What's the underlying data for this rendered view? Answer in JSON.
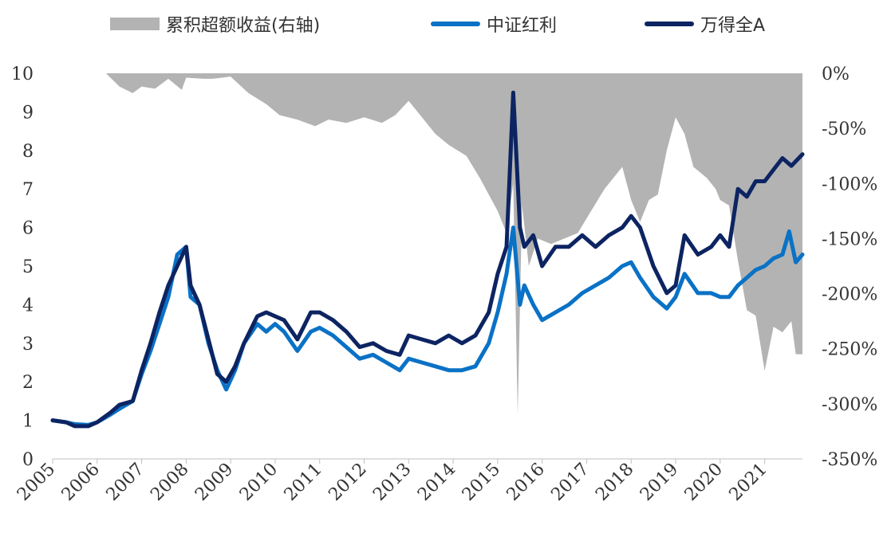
{
  "chart_data": {
    "type": "line",
    "title": "",
    "legend": [
      {
        "label": "累积超额收益(右轴)",
        "kind": "area",
        "color": "#b3b3b3"
      },
      {
        "label": "中证红利",
        "kind": "line",
        "color": "#0a72c6"
      },
      {
        "label": "万得全A",
        "kind": "line",
        "color": "#0d2462"
      }
    ],
    "legend_position": "top",
    "grid": false,
    "x_ticks": [
      "2005",
      "2006",
      "2007",
      "2008",
      "2009",
      "2010",
      "2011",
      "2012",
      "2013",
      "2014",
      "2015",
      "2016",
      "2017",
      "2018",
      "2019",
      "2020",
      "2021"
    ],
    "xlim": [
      2005,
      2021.85
    ],
    "y_left": {
      "ticks": [
        "0",
        "1",
        "2",
        "3",
        "4",
        "5",
        "6",
        "7",
        "8",
        "9",
        "10"
      ],
      "ylim": [
        0,
        10
      ]
    },
    "y_right": {
      "ticks": [
        "0%",
        "-50%",
        "-100%",
        "-150%",
        "-200%",
        "-250%",
        "-300%",
        "-350%"
      ],
      "ylim": [
        -350,
        0
      ]
    },
    "series": [
      {
        "name": "累积超额收益(右轴)",
        "axis": "right",
        "type": "area",
        "points": [
          [
            2005.0,
            0
          ],
          [
            2006.2,
            0
          ],
          [
            2006.5,
            -12
          ],
          [
            2006.8,
            -18
          ],
          [
            2007.0,
            -12
          ],
          [
            2007.3,
            -14
          ],
          [
            2007.6,
            -5
          ],
          [
            2007.9,
            -15
          ],
          [
            2008.0,
            -4
          ],
          [
            2008.4,
            -5
          ],
          [
            2008.6,
            -5
          ],
          [
            2008.8,
            -4
          ],
          [
            2009.0,
            -3
          ],
          [
            2009.4,
            -18
          ],
          [
            2009.8,
            -28
          ],
          [
            2010.1,
            -38
          ],
          [
            2010.5,
            -42
          ],
          [
            2010.9,
            -48
          ],
          [
            2011.2,
            -42
          ],
          [
            2011.6,
            -45
          ],
          [
            2012.0,
            -40
          ],
          [
            2012.4,
            -45
          ],
          [
            2012.7,
            -38
          ],
          [
            2013.0,
            -25
          ],
          [
            2013.3,
            -40
          ],
          [
            2013.6,
            -55
          ],
          [
            2013.9,
            -65
          ],
          [
            2014.3,
            -75
          ],
          [
            2014.6,
            -95
          ],
          [
            2014.8,
            -110
          ],
          [
            2015.0,
            -125
          ],
          [
            2015.2,
            -145
          ],
          [
            2015.35,
            -100
          ],
          [
            2015.45,
            -310
          ],
          [
            2015.55,
            -120
          ],
          [
            2015.7,
            -175
          ],
          [
            2015.9,
            -150
          ],
          [
            2016.2,
            -155
          ],
          [
            2016.5,
            -150
          ],
          [
            2016.8,
            -145
          ],
          [
            2017.1,
            -125
          ],
          [
            2017.4,
            -105
          ],
          [
            2017.6,
            -95
          ],
          [
            2017.8,
            -85
          ],
          [
            2018.0,
            -115
          ],
          [
            2018.2,
            -135
          ],
          [
            2018.4,
            -115
          ],
          [
            2018.6,
            -110
          ],
          [
            2018.8,
            -70
          ],
          [
            2019.0,
            -40
          ],
          [
            2019.2,
            -55
          ],
          [
            2019.4,
            -85
          ],
          [
            2019.7,
            -95
          ],
          [
            2019.9,
            -105
          ],
          [
            2020.0,
            -115
          ],
          [
            2020.2,
            -120
          ],
          [
            2020.4,
            -170
          ],
          [
            2020.6,
            -215
          ],
          [
            2020.8,
            -220
          ],
          [
            2021.0,
            -270
          ],
          [
            2021.2,
            -230
          ],
          [
            2021.4,
            -235
          ],
          [
            2021.6,
            -225
          ],
          [
            2021.7,
            -255
          ],
          [
            2021.85,
            -255
          ]
        ]
      },
      {
        "name": "中证红利",
        "axis": "left",
        "type": "line",
        "points": [
          [
            2005.0,
            1.0
          ],
          [
            2005.3,
            0.95
          ],
          [
            2005.5,
            0.9
          ],
          [
            2005.8,
            0.88
          ],
          [
            2006.0,
            0.95
          ],
          [
            2006.3,
            1.15
          ],
          [
            2006.5,
            1.3
          ],
          [
            2006.8,
            1.5
          ],
          [
            2007.0,
            2.2
          ],
          [
            2007.2,
            2.8
          ],
          [
            2007.4,
            3.5
          ],
          [
            2007.6,
            4.2
          ],
          [
            2007.8,
            5.3
          ],
          [
            2008.0,
            5.5
          ],
          [
            2008.1,
            4.2
          ],
          [
            2008.3,
            4.0
          ],
          [
            2008.5,
            3.0
          ],
          [
            2008.7,
            2.3
          ],
          [
            2008.9,
            1.8
          ],
          [
            2009.1,
            2.3
          ],
          [
            2009.3,
            3.0
          ],
          [
            2009.6,
            3.5
          ],
          [
            2009.8,
            3.3
          ],
          [
            2010.0,
            3.5
          ],
          [
            2010.2,
            3.3
          ],
          [
            2010.5,
            2.8
          ],
          [
            2010.8,
            3.3
          ],
          [
            2011.0,
            3.4
          ],
          [
            2011.3,
            3.2
          ],
          [
            2011.6,
            2.9
          ],
          [
            2011.9,
            2.6
          ],
          [
            2012.2,
            2.7
          ],
          [
            2012.5,
            2.5
          ],
          [
            2012.8,
            2.3
          ],
          [
            2013.0,
            2.6
          ],
          [
            2013.3,
            2.5
          ],
          [
            2013.6,
            2.4
          ],
          [
            2013.9,
            2.3
          ],
          [
            2014.2,
            2.3
          ],
          [
            2014.5,
            2.4
          ],
          [
            2014.8,
            3.0
          ],
          [
            2015.0,
            3.8
          ],
          [
            2015.2,
            4.8
          ],
          [
            2015.35,
            6.0
          ],
          [
            2015.5,
            4.0
          ],
          [
            2015.6,
            4.5
          ],
          [
            2015.8,
            4.0
          ],
          [
            2016.0,
            3.6
          ],
          [
            2016.3,
            3.8
          ],
          [
            2016.6,
            4.0
          ],
          [
            2016.9,
            4.3
          ],
          [
            2017.2,
            4.5
          ],
          [
            2017.5,
            4.7
          ],
          [
            2017.8,
            5.0
          ],
          [
            2018.0,
            5.1
          ],
          [
            2018.2,
            4.7
          ],
          [
            2018.5,
            4.2
          ],
          [
            2018.8,
            3.9
          ],
          [
            2019.0,
            4.2
          ],
          [
            2019.2,
            4.8
          ],
          [
            2019.5,
            4.3
          ],
          [
            2019.8,
            4.3
          ],
          [
            2020.0,
            4.2
          ],
          [
            2020.2,
            4.2
          ],
          [
            2020.4,
            4.5
          ],
          [
            2020.6,
            4.7
          ],
          [
            2020.8,
            4.9
          ],
          [
            2021.0,
            5.0
          ],
          [
            2021.2,
            5.2
          ],
          [
            2021.4,
            5.3
          ],
          [
            2021.55,
            5.9
          ],
          [
            2021.7,
            5.1
          ],
          [
            2021.85,
            5.3
          ]
        ]
      },
      {
        "name": "万得全A",
        "axis": "left",
        "type": "line",
        "points": [
          [
            2005.0,
            1.0
          ],
          [
            2005.3,
            0.95
          ],
          [
            2005.5,
            0.85
          ],
          [
            2005.8,
            0.85
          ],
          [
            2006.0,
            0.95
          ],
          [
            2006.3,
            1.2
          ],
          [
            2006.5,
            1.4
          ],
          [
            2006.8,
            1.5
          ],
          [
            2007.0,
            2.3
          ],
          [
            2007.2,
            3.0
          ],
          [
            2007.4,
            3.8
          ],
          [
            2007.6,
            4.5
          ],
          [
            2007.8,
            5.0
          ],
          [
            2008.0,
            5.5
          ],
          [
            2008.1,
            4.5
          ],
          [
            2008.3,
            4.0
          ],
          [
            2008.5,
            3.1
          ],
          [
            2008.7,
            2.2
          ],
          [
            2008.9,
            2.0
          ],
          [
            2009.1,
            2.4
          ],
          [
            2009.3,
            3.0
          ],
          [
            2009.6,
            3.7
          ],
          [
            2009.8,
            3.8
          ],
          [
            2010.0,
            3.7
          ],
          [
            2010.2,
            3.6
          ],
          [
            2010.5,
            3.1
          ],
          [
            2010.8,
            3.8
          ],
          [
            2011.0,
            3.8
          ],
          [
            2011.3,
            3.6
          ],
          [
            2011.6,
            3.3
          ],
          [
            2011.9,
            2.9
          ],
          [
            2012.2,
            3.0
          ],
          [
            2012.5,
            2.8
          ],
          [
            2012.8,
            2.7
          ],
          [
            2013.0,
            3.2
          ],
          [
            2013.3,
            3.1
          ],
          [
            2013.6,
            3.0
          ],
          [
            2013.9,
            3.2
          ],
          [
            2014.2,
            3.0
          ],
          [
            2014.5,
            3.2
          ],
          [
            2014.8,
            3.8
          ],
          [
            2015.0,
            4.8
          ],
          [
            2015.2,
            5.5
          ],
          [
            2015.35,
            9.5
          ],
          [
            2015.5,
            6.0
          ],
          [
            2015.6,
            5.5
          ],
          [
            2015.8,
            5.8
          ],
          [
            2016.0,
            5.0
          ],
          [
            2016.3,
            5.5
          ],
          [
            2016.6,
            5.5
          ],
          [
            2016.9,
            5.8
          ],
          [
            2017.2,
            5.5
          ],
          [
            2017.5,
            5.8
          ],
          [
            2017.8,
            6.0
          ],
          [
            2018.0,
            6.3
          ],
          [
            2018.2,
            6.0
          ],
          [
            2018.5,
            5.0
          ],
          [
            2018.8,
            4.3
          ],
          [
            2019.0,
            4.5
          ],
          [
            2019.2,
            5.8
          ],
          [
            2019.5,
            5.3
          ],
          [
            2019.8,
            5.5
          ],
          [
            2020.0,
            5.8
          ],
          [
            2020.2,
            5.5
          ],
          [
            2020.4,
            7.0
          ],
          [
            2020.6,
            6.8
          ],
          [
            2020.8,
            7.2
          ],
          [
            2021.0,
            7.2
          ],
          [
            2021.2,
            7.5
          ],
          [
            2021.4,
            7.8
          ],
          [
            2021.6,
            7.6
          ],
          [
            2021.85,
            7.9
          ]
        ]
      }
    ]
  }
}
